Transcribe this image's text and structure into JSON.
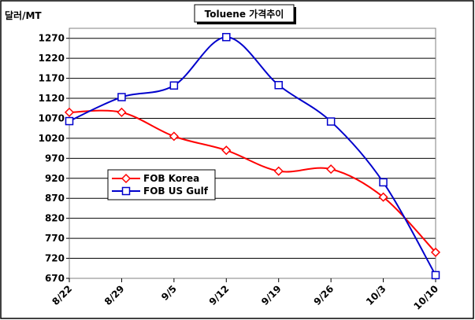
{
  "chart_data": {
    "type": "line",
    "title": "Toluene 가격추이",
    "ylabel": "달러/MT",
    "xlabel": "",
    "categories": [
      "8/22",
      "8/29",
      "9/5",
      "9/12",
      "9/19",
      "9/26",
      "10/3",
      "10/10"
    ],
    "ylim": [
      670,
      1295
    ],
    "yticks": [
      670,
      720,
      770,
      820,
      870,
      920,
      970,
      1020,
      1070,
      1120,
      1170,
      1220,
      1270
    ],
    "grid": true,
    "legend_placement": "left-center",
    "series": [
      {
        "name": "FOB Korea",
        "color": "#ff0000",
        "marker": "diamond",
        "values": [
          1085,
          1085,
          1025,
          990,
          938,
          943,
          873,
          735
        ]
      },
      {
        "name": "FOB US Gulf",
        "color": "#0000cc",
        "marker": "square",
        "values": [
          1063,
          1123,
          1152,
          1273,
          1153,
          1062,
          910,
          678
        ]
      }
    ]
  }
}
